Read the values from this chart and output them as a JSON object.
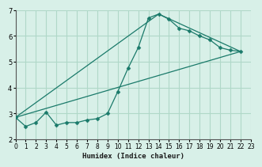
{
  "bg_color": "#d8f0e8",
  "grid_color": "#b0d8c8",
  "line_color": "#1a7a6a",
  "marker_color": "#1a7a6a",
  "xlabel": "Humidex (Indice chaleur)",
  "xlim": [
    0,
    23
  ],
  "ylim": [
    2,
    7
  ],
  "yticks": [
    2,
    3,
    4,
    5,
    6,
    7
  ],
  "xticks": [
    0,
    1,
    2,
    3,
    4,
    5,
    6,
    7,
    8,
    9,
    10,
    11,
    12,
    13,
    14,
    15,
    16,
    17,
    18,
    19,
    20,
    21,
    22,
    23
  ],
  "series1_x": [
    0,
    1,
    2,
    3,
    4,
    5,
    6,
    7,
    8,
    9,
    10,
    11,
    12,
    13,
    14,
    15,
    16,
    17,
    18,
    19,
    20,
    21,
    22
  ],
  "series1_y": [
    2.85,
    2.5,
    2.65,
    3.05,
    2.55,
    2.65,
    2.65,
    2.75,
    2.8,
    3.0,
    3.85,
    4.75,
    5.55,
    6.7,
    6.85,
    6.65,
    6.3,
    6.2,
    6.0,
    5.85,
    5.55,
    5.45,
    5.4
  ],
  "series2_x": [
    0,
    22
  ],
  "series2_y": [
    2.85,
    5.4
  ],
  "series3_x": [
    0,
    14,
    22
  ],
  "series3_y": [
    2.85,
    6.85,
    5.4
  ]
}
